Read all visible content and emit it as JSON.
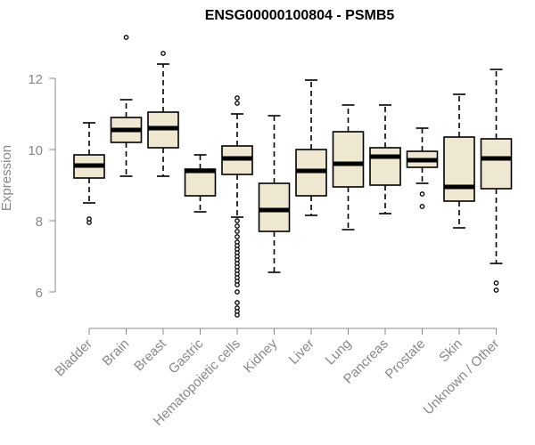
{
  "chart_data": {
    "type": "boxplot",
    "title": "ENSG00000100804 - PSMB5",
    "xlabel": "",
    "ylabel": "Expression",
    "ylim": [
      5.2,
      13.4
    ],
    "yticks": [
      6,
      8,
      10,
      12
    ],
    "box_fill": "#efe8d0",
    "categories": [
      "Bladder",
      "Brain",
      "Breast",
      "Gastric",
      "Hematopoietic cells",
      "Kidney",
      "Liver",
      "Lung",
      "Pancreas",
      "Prostate",
      "Skin",
      "Unknown / Other"
    ],
    "boxes": [
      {
        "name": "Bladder",
        "whisker_low": 8.5,
        "q1": 9.2,
        "median": 9.55,
        "q3": 9.85,
        "whisker_high": 10.75,
        "outliers": [
          7.95,
          8.05
        ]
      },
      {
        "name": "Brain",
        "whisker_low": 9.25,
        "q1": 10.2,
        "median": 10.55,
        "q3": 10.9,
        "whisker_high": 11.4,
        "outliers": [
          13.15
        ]
      },
      {
        "name": "Breast",
        "whisker_low": 9.25,
        "q1": 10.05,
        "median": 10.6,
        "q3": 11.05,
        "whisker_high": 12.4,
        "outliers": [
          12.7
        ]
      },
      {
        "name": "Gastric",
        "whisker_low": 8.25,
        "q1": 8.7,
        "median": 9.4,
        "q3": 9.45,
        "whisker_high": 9.85,
        "outliers": []
      },
      {
        "name": "Hematopoietic cells",
        "whisker_low": 8.1,
        "q1": 9.3,
        "median": 9.75,
        "q3": 10.1,
        "whisker_high": 11.0,
        "outliers": [
          11.3,
          11.45,
          8.0,
          7.85,
          7.7,
          7.55,
          7.4,
          7.3,
          7.2,
          7.1,
          7.0,
          6.9,
          6.8,
          6.7,
          6.6,
          6.5,
          6.4,
          6.3,
          6.2,
          6.0,
          5.7,
          5.55,
          5.45,
          5.35
        ]
      },
      {
        "name": "Kidney",
        "whisker_low": 6.55,
        "q1": 7.7,
        "median": 8.3,
        "q3": 9.05,
        "whisker_high": 10.95,
        "outliers": []
      },
      {
        "name": "Liver",
        "whisker_low": 8.15,
        "q1": 8.7,
        "median": 9.4,
        "q3": 10.0,
        "whisker_high": 11.95,
        "outliers": []
      },
      {
        "name": "Lung",
        "whisker_low": 7.75,
        "q1": 8.95,
        "median": 9.6,
        "q3": 10.5,
        "whisker_high": 11.25,
        "outliers": []
      },
      {
        "name": "Pancreas",
        "whisker_low": 8.2,
        "q1": 9.0,
        "median": 9.8,
        "q3": 10.05,
        "whisker_high": 11.25,
        "outliers": []
      },
      {
        "name": "Prostate",
        "whisker_low": 9.05,
        "q1": 9.5,
        "median": 9.7,
        "q3": 9.95,
        "whisker_high": 10.6,
        "outliers": [
          8.75,
          8.4
        ]
      },
      {
        "name": "Skin",
        "whisker_low": 7.8,
        "q1": 8.55,
        "median": 8.95,
        "q3": 10.35,
        "whisker_high": 11.55,
        "outliers": []
      },
      {
        "name": "Unknown / Other",
        "whisker_low": 6.8,
        "q1": 8.9,
        "median": 9.75,
        "q3": 10.3,
        "whisker_high": 12.25,
        "outliers": [
          6.25,
          6.05
        ]
      }
    ]
  }
}
